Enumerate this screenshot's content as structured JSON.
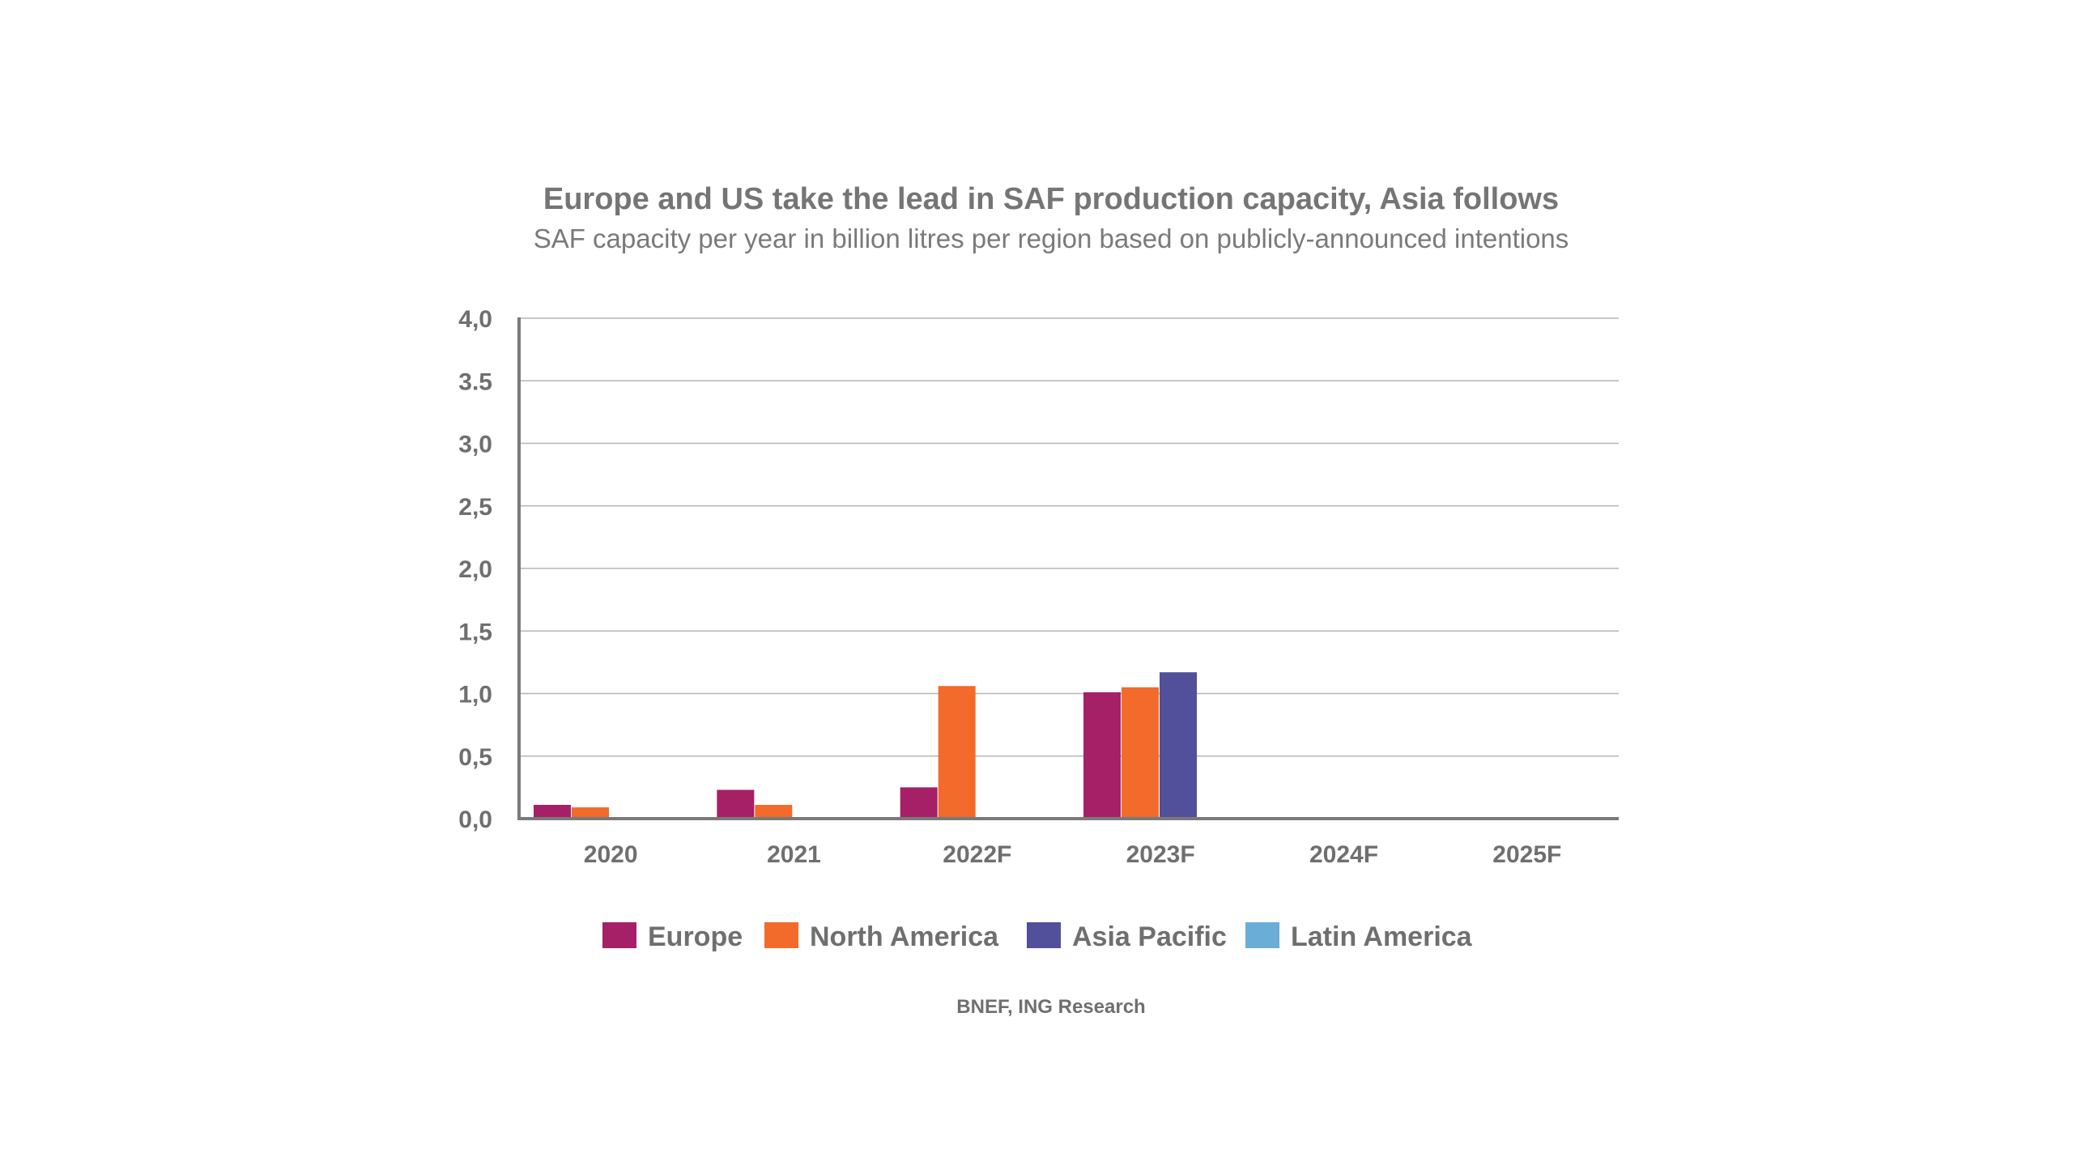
{
  "chart_data": {
    "type": "bar",
    "title": "Europe and US take the lead in SAF production capacity, Asia follows",
    "subtitle": "SAF capacity per year in billion litres per region based on publicly-announced intentions",
    "xlabel": "",
    "ylabel": "",
    "categories": [
      "2020",
      "2021",
      "2022F",
      "2023F",
      "2024F",
      "2025F"
    ],
    "ylim": [
      0,
      4.0
    ],
    "yticks": [
      0,
      0.5,
      1.0,
      1.5,
      2.0,
      2.5,
      3.0,
      3.5,
      4.0
    ],
    "ytick_labels": [
      "0,0",
      "0,5",
      "1,0",
      "1,5",
      "2,0",
      "2,5",
      "3,0",
      "3.5",
      "4,0"
    ],
    "grid": true,
    "legend_position": "bottom",
    "series": [
      {
        "name": "Europe",
        "color": "#a52067",
        "values": [
          0.11,
          0.23,
          0.25,
          1.01,
          0,
          0
        ]
      },
      {
        "name": "North America",
        "color": "#f26b2a",
        "values": [
          0.09,
          0.11,
          1.06,
          1.05,
          0,
          0
        ]
      },
      {
        "name": "Asia Pacific",
        "color": "#52509a",
        "values": [
          0,
          0,
          0,
          1.17,
          0,
          0
        ]
      },
      {
        "name": "Latin America",
        "color": "#6aaed8",
        "values": [
          0,
          0,
          0,
          0,
          0,
          0
        ]
      }
    ],
    "source": "BNEF, ING Research"
  }
}
